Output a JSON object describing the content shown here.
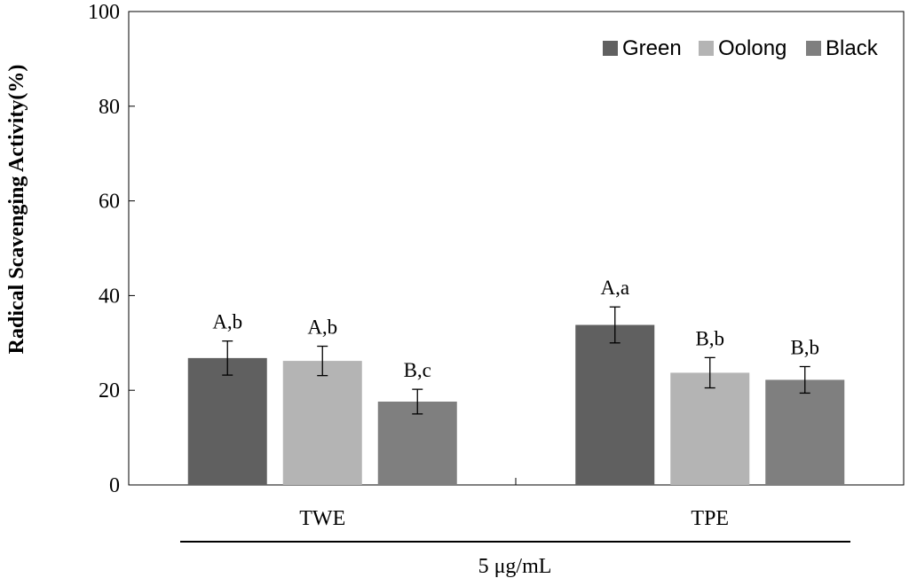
{
  "chart_data": {
    "type": "bar",
    "title": "",
    "ylabel": "Radical Scavenging Activity(%)",
    "xlabel": "5 μg/mL",
    "ylim": [
      0,
      100
    ],
    "yticks": [
      "0",
      "20",
      "40",
      "60",
      "80",
      "100"
    ],
    "grid": false,
    "legend_position": "top-right",
    "categories": [
      "TWE",
      "TPE"
    ],
    "series": [
      {
        "name": "Green",
        "color": "#606060",
        "values": [
          26.8,
          33.8
        ],
        "errors": [
          3.6,
          3.8
        ],
        "labels": [
          "A,b",
          "A,a"
        ]
      },
      {
        "name": "Oolong",
        "color": "#b4b4b4",
        "values": [
          26.2,
          23.7
        ],
        "errors": [
          3.1,
          3.2
        ],
        "labels": [
          "A,b",
          "B,b"
        ]
      },
      {
        "name": "Black",
        "color": "#7f7f7f",
        "values": [
          17.6,
          22.2
        ],
        "errors": [
          2.6,
          2.8
        ],
        "labels": [
          "B,c",
          "B,b"
        ]
      }
    ]
  }
}
